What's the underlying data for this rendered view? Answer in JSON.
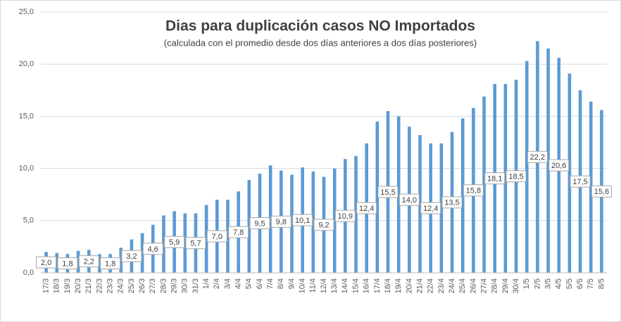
{
  "chart_data": {
    "type": "bar",
    "title": "Dias para duplicación casos NO Importados",
    "subtitle": "(calculada con el promedio  desde dos días anteriores a dos días posteriores)",
    "categories": [
      "17/3",
      "18/3",
      "19/3",
      "20/3",
      "21/3",
      "22/3",
      "23/3",
      "24/3",
      "25/3",
      "26/3",
      "27/3",
      "28/3",
      "29/3",
      "30/3",
      "31/3",
      "1/4",
      "2/4",
      "3/4",
      "4/4",
      "5/4",
      "6/4",
      "7/4",
      "8/4",
      "9/4",
      "10/4",
      "11/4",
      "12/4",
      "13/4",
      "14/4",
      "15/4",
      "16/4",
      "17/4",
      "18/4",
      "19/4",
      "20/4",
      "21/4",
      "22/4",
      "23/4",
      "24/4",
      "25/4",
      "26/4",
      "27/4",
      "28/4",
      "29/4",
      "30/4",
      "1/5",
      "2/5",
      "3/5",
      "4/5",
      "5/5",
      "6/5",
      "7/5",
      "8/5"
    ],
    "values": [
      2.0,
      1.9,
      1.8,
      2.1,
      2.2,
      1.8,
      1.8,
      2.4,
      3.2,
      3.8,
      4.6,
      5.5,
      5.9,
      5.7,
      5.7,
      6.5,
      7.0,
      7.0,
      7.8,
      8.9,
      9.5,
      10.3,
      9.8,
      9.4,
      10.1,
      9.7,
      9.2,
      10.0,
      10.9,
      11.2,
      12.4,
      14.5,
      15.5,
      15.0,
      14.0,
      13.2,
      12.4,
      12.4,
      13.5,
      14.8,
      15.8,
      16.9,
      18.1,
      18.1,
      18.5,
      20.3,
      22.2,
      21.5,
      20.6,
      19.1,
      17.5,
      16.4,
      15.6
    ],
    "value_labels": [
      "2,0",
      null,
      "1,8",
      null,
      "2,2",
      null,
      "1,8",
      null,
      "3,2",
      null,
      "4,6",
      null,
      "5,9",
      null,
      "5,7",
      null,
      "7,0",
      null,
      "7,8",
      null,
      "9,5",
      null,
      "9,8",
      null,
      "10,1",
      null,
      "9,2",
      null,
      "10,9",
      null,
      "12,4",
      null,
      "15,5",
      null,
      "14,0",
      null,
      "12,4",
      null,
      "13,5",
      null,
      "15,8",
      null,
      "18,1",
      null,
      "18,5",
      null,
      "22,2",
      null,
      "20,6",
      null,
      "17,5",
      null,
      "15,6"
    ],
    "color": "#5b9bd5",
    "ylim": [
      0,
      25
    ],
    "yticks": [
      {
        "value": 0,
        "label": "0,0"
      },
      {
        "value": 5,
        "label": "5,0"
      },
      {
        "value": 10,
        "label": "10,0"
      },
      {
        "value": 15,
        "label": "15,0"
      },
      {
        "value": 20,
        "label": "20,0"
      },
      {
        "value": 25,
        "label": "25,0"
      }
    ],
    "grid": true
  }
}
